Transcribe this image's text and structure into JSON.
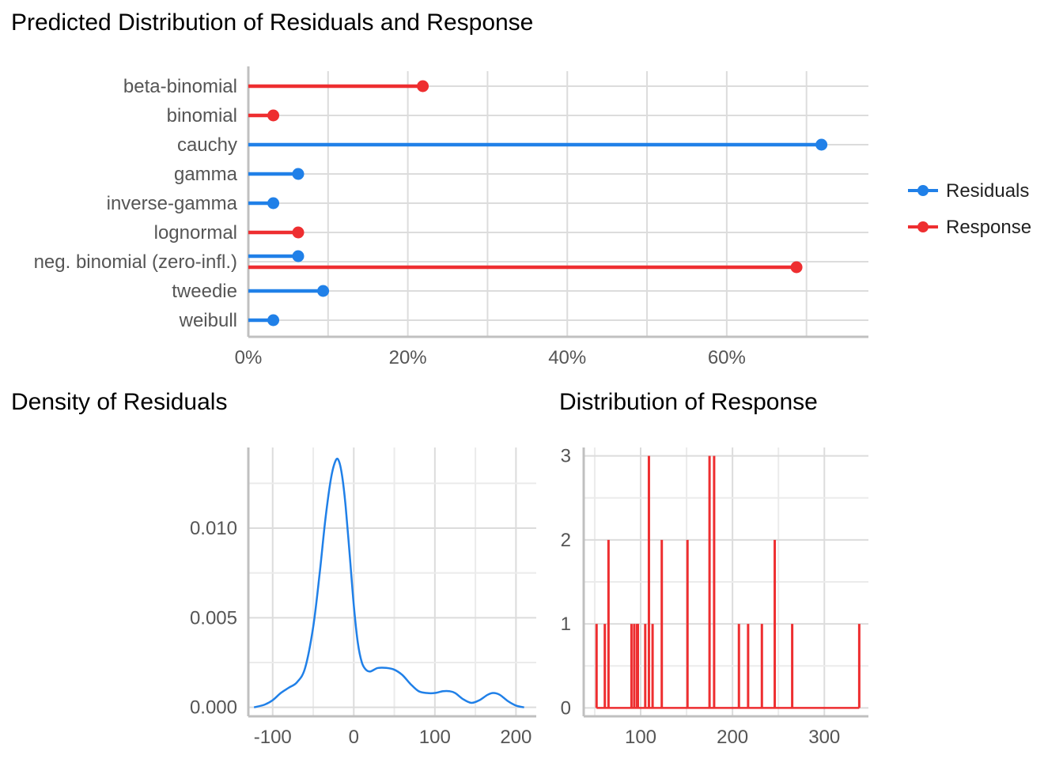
{
  "colors": {
    "residuals": "#2080E8",
    "response": "#EE2E30"
  },
  "chart_data": [
    {
      "type": "lollipop",
      "title": "Predicted Distribution of Residuals and Response",
      "xlabel": "",
      "ylabel": "",
      "xlim": [
        0,
        0.7777
      ],
      "xticks": [
        0,
        0.2,
        0.4,
        0.6
      ],
      "xtick_labels": [
        "0%",
        "20%",
        "40%",
        "60%"
      ],
      "categories": [
        "beta-binomial",
        "binomial",
        "cauchy",
        "gamma",
        "inverse-gamma",
        "lognormal",
        "neg. binomial (zero-infl.)",
        "tweedie",
        "weibull"
      ],
      "legend": {
        "position": "right",
        "entries": [
          "Residuals",
          "Response"
        ]
      },
      "series": [
        {
          "name": "Residuals",
          "values": [
            null,
            null,
            0.7188,
            0.0625,
            0.0313,
            null,
            0.0625,
            0.0938,
            0.0313
          ]
        },
        {
          "name": "Response",
          "values": [
            0.2188,
            0.0313,
            null,
            null,
            null,
            0.0625,
            0.6875,
            null,
            null
          ]
        }
      ]
    },
    {
      "type": "line",
      "title": "Density of Residuals",
      "xlabel": "",
      "ylabel": "",
      "xlim": [
        -130,
        225
      ],
      "ylim": [
        -0.0005,
        0.0145
      ],
      "xticks": [
        -100,
        0,
        100,
        200
      ],
      "xtick_labels": [
        "-100",
        "0",
        "100",
        "200"
      ],
      "yticks": [
        0,
        0.005,
        0.01
      ],
      "ytick_labels": [
        "0.000",
        "0.005",
        "0.010"
      ],
      "series": [
        {
          "name": "",
          "x": [
            -123,
            -110,
            -100,
            -90,
            -80,
            -70,
            -60,
            -50,
            -42,
            -35,
            -28,
            -22,
            -18,
            -14,
            -10,
            -5,
            0,
            5,
            10,
            15,
            20,
            25,
            30,
            40,
            50,
            60,
            70,
            80,
            90,
            100,
            110,
            118,
            125,
            135,
            145,
            155,
            165,
            172,
            180,
            190,
            200,
            210
          ],
          "y": [
            0.0,
            0.00015,
            0.0004,
            0.0008,
            0.0011,
            0.0014,
            0.0022,
            0.0045,
            0.0075,
            0.0105,
            0.0128,
            0.0138,
            0.0137,
            0.0128,
            0.0112,
            0.0085,
            0.0057,
            0.0036,
            0.0025,
            0.0021,
            0.002,
            0.0021,
            0.0022,
            0.0022,
            0.0021,
            0.0018,
            0.0013,
            0.0009,
            0.0008,
            0.0008,
            0.0009,
            0.0009,
            0.0008,
            0.00045,
            0.00025,
            0.0004,
            0.0007,
            0.0008,
            0.0007,
            0.00035,
            0.0001,
            0.0
          ]
        }
      ]
    },
    {
      "type": "bar",
      "title": "Distribution of Response",
      "xlabel": "",
      "ylabel": "",
      "xlim": [
        38,
        348
      ],
      "ylim": [
        -0.1,
        3.1
      ],
      "xticks": [
        100,
        200,
        300
      ],
      "xtick_labels": [
        "100",
        "200",
        "300"
      ],
      "yticks": [
        0,
        1,
        2,
        3
      ],
      "ytick_labels": [
        "0",
        "1",
        "2",
        "3"
      ],
      "x": [
        52,
        61,
        65,
        90,
        93,
        96,
        97,
        105,
        109,
        113,
        123,
        151,
        175,
        180,
        207,
        217,
        232,
        246,
        265,
        338
      ],
      "values": [
        1,
        1,
        2,
        1,
        1,
        1,
        1,
        1,
        3,
        1,
        2,
        2,
        3,
        3,
        1,
        1,
        1,
        2,
        1,
        1
      ]
    }
  ]
}
